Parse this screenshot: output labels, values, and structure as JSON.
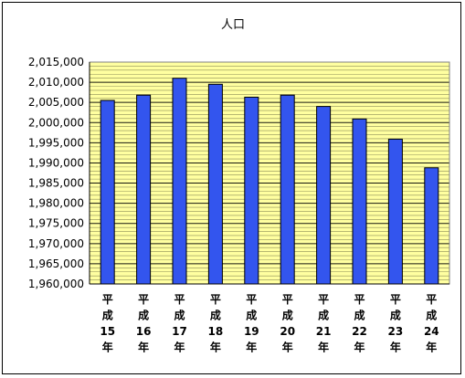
{
  "chart_data": {
    "type": "bar",
    "title": "人口",
    "xlabel": "",
    "ylabel": "",
    "categories": [
      [
        "平",
        "成",
        "15",
        "年"
      ],
      [
        "平",
        "成",
        "16",
        "年"
      ],
      [
        "平",
        "成",
        "17",
        "年"
      ],
      [
        "平",
        "成",
        "18",
        "年"
      ],
      [
        "平",
        "成",
        "19",
        "年"
      ],
      [
        "平",
        "成",
        "20",
        "年"
      ],
      [
        "平",
        "成",
        "21",
        "年"
      ],
      [
        "平",
        "成",
        "22",
        "年"
      ],
      [
        "平",
        "成",
        "23",
        "年"
      ],
      [
        "平",
        "成",
        "24",
        "年"
      ]
    ],
    "values": [
      2005500,
      2006800,
      2011000,
      2009500,
      2006300,
      2006800,
      2004000,
      2000900,
      1995900,
      1988800
    ],
    "ylim": [
      1960000,
      2015000
    ],
    "yticks": [
      "1,960,000",
      "1,965,000",
      "1,970,000",
      "1,975,000",
      "1,980,000",
      "1,985,000",
      "1,990,000",
      "1,995,000",
      "2,000,000",
      "2,005,000",
      "2,010,000",
      "2,015,000"
    ],
    "ytick_values": [
      1960000,
      1965000,
      1970000,
      1975000,
      1980000,
      1985000,
      1990000,
      1995000,
      2000000,
      2005000,
      2010000,
      2015000
    ],
    "grid": true,
    "legend": "none",
    "colors": {
      "bar": "#3355ee",
      "bar_stroke": "#000000",
      "plot_background": "#ffffa0",
      "grid": "#000000"
    }
  }
}
